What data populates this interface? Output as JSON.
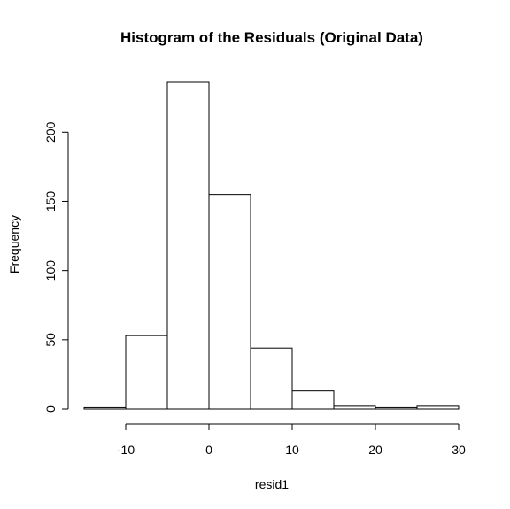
{
  "chart_data": {
    "type": "bar",
    "subtype": "histogram",
    "title": "Histogram of the Residuals (Original Data)",
    "xlabel": "resid1",
    "ylabel": "Frequency",
    "bins": [
      {
        "from": -15,
        "to": -10,
        "count": 1
      },
      {
        "from": -10,
        "to": -5,
        "count": 53
      },
      {
        "from": -5,
        "to": 0,
        "count": 236
      },
      {
        "from": 0,
        "to": 5,
        "count": 155
      },
      {
        "from": 5,
        "to": 10,
        "count": 44
      },
      {
        "from": 10,
        "to": 15,
        "count": 13
      },
      {
        "from": 15,
        "to": 20,
        "count": 2
      },
      {
        "from": 20,
        "to": 25,
        "count": 1
      },
      {
        "from": 25,
        "to": 30,
        "count": 2
      }
    ],
    "xticks": [
      -10,
      0,
      10,
      20,
      30
    ],
    "xtick_labels": [
      "-10",
      "0",
      "10",
      "20",
      "30"
    ],
    "yticks": [
      0,
      50,
      100,
      150,
      200
    ],
    "ytick_labels": [
      "0",
      "50",
      "100",
      "150",
      "200"
    ],
    "xlim": [
      -15,
      30
    ],
    "ylim": [
      0,
      236
    ],
    "grid": false,
    "colors": {
      "bar_fill": "#ffffff",
      "bar_stroke": "#000000",
      "text": "#000000",
      "background": "#ffffff"
    }
  }
}
